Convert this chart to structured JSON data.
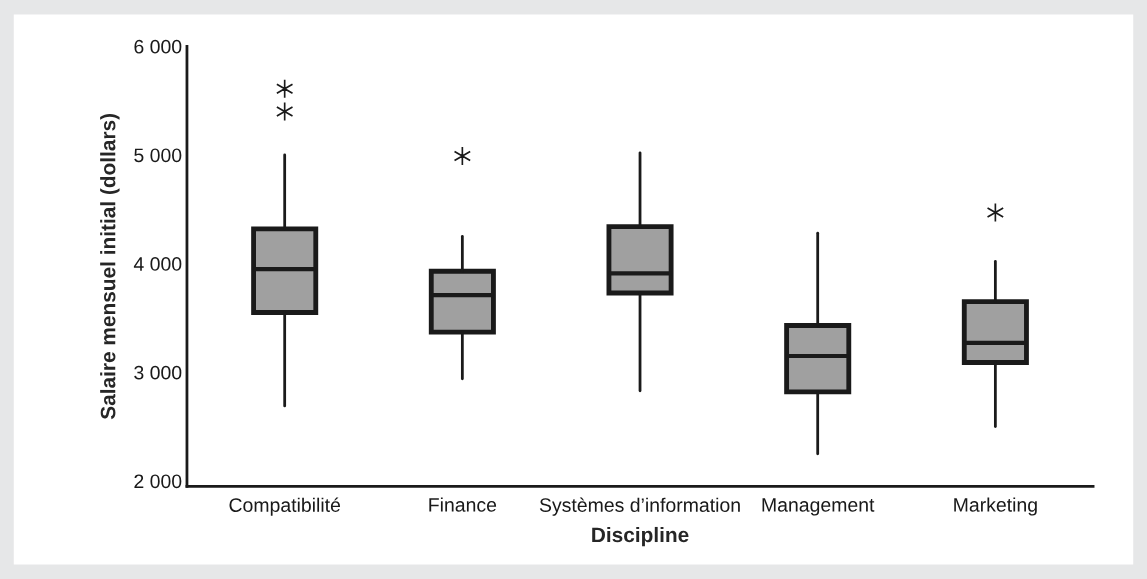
{
  "chart_data": {
    "type": "box",
    "xlabel": "Discipline",
    "ylabel": "Salaire mensuel initial (dollars)",
    "categories": [
      "Compatibilité",
      "Finance",
      "Systèmes d’information",
      "Management",
      "Marketing"
    ],
    "boxes": [
      {
        "low": 2690,
        "q1": 3550,
        "median": 3950,
        "q3": 4320,
        "high": 5000,
        "outliers": [
          5400,
          5610
        ]
      },
      {
        "low": 2940,
        "q1": 3370,
        "median": 3710,
        "q3": 3930,
        "high": 4250,
        "outliers": [
          4990
        ]
      },
      {
        "low": 2830,
        "q1": 3730,
        "median": 3910,
        "q3": 4340,
        "high": 5020
      },
      {
        "low": 2250,
        "q1": 2820,
        "median": 3150,
        "q3": 3430,
        "high": 4280
      },
      {
        "low": 2500,
        "q1": 3090,
        "median": 3270,
        "q3": 3650,
        "high": 4020,
        "outliers": [
          4470
        ]
      }
    ],
    "color": "#a0a0a0",
    "ylim": [
      1950,
      6000
    ],
    "yticks": [
      {
        "value": 2000,
        "label": "2 000"
      },
      {
        "value": 3000,
        "label": "3 000"
      },
      {
        "value": 4000,
        "label": "4 000"
      },
      {
        "value": 5000,
        "label": "5 000"
      },
      {
        "value": 6000,
        "label": "6 000"
      }
    ],
    "grid": false,
    "legend": false
  }
}
